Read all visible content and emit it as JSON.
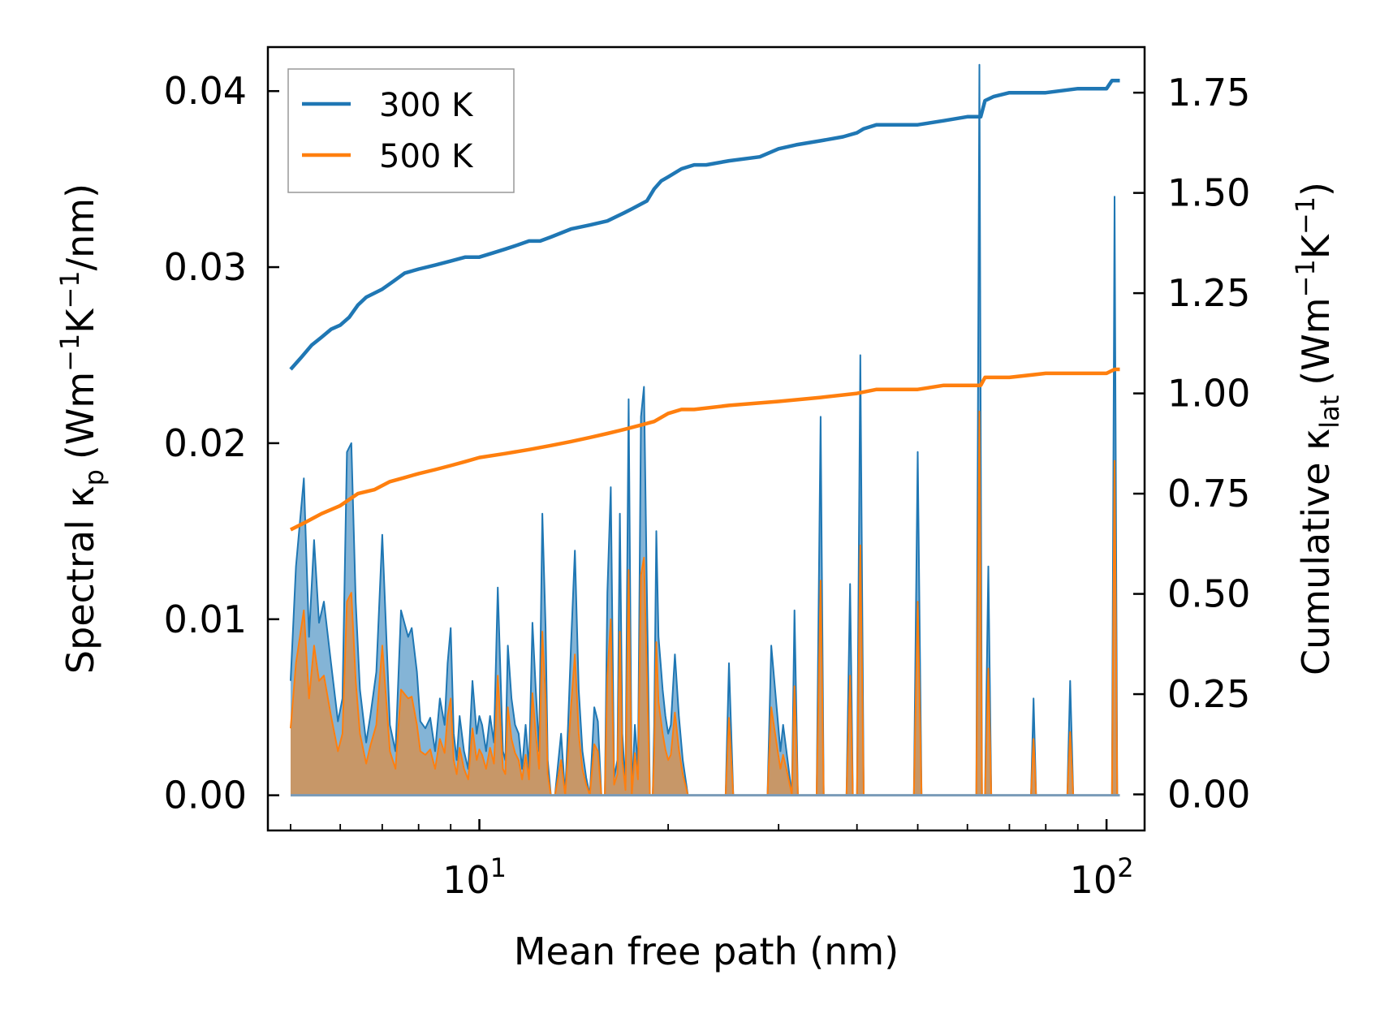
{
  "chart_data": {
    "type": "line",
    "xscale": "log",
    "xlim": [
      4.6,
      115
    ],
    "ylim_left": [
      -0.002,
      0.0425
    ],
    "ylim_right": [
      -0.09,
      1.8637
    ],
    "xlabel": "Mean free path (nm)",
    "ylabel_left": {
      "prefix": "Spectral κ",
      "sub": "p",
      "unit": "(Wm",
      "sup1": "−1",
      "mid": "K",
      "sup2": "−1",
      "suffix": "/nm)"
    },
    "ylabel_right": {
      "prefix": "Cumulative κ",
      "sub": "lat",
      "unit": "(Wm",
      "sup1": "−1",
      "mid": "K",
      "sup2": "−1",
      "suffix": ")"
    },
    "x_ticks": [
      {
        "value": 10,
        "base": "10",
        "exp": "1"
      },
      {
        "value": 100,
        "base": "10",
        "exp": "2"
      }
    ],
    "y_left_ticks": [
      {
        "value": 0.0,
        "label": "0.00"
      },
      {
        "value": 0.01,
        "label": "0.01"
      },
      {
        "value": 0.02,
        "label": "0.02"
      },
      {
        "value": 0.03,
        "label": "0.03"
      },
      {
        "value": 0.04,
        "label": "0.04"
      }
    ],
    "y_right_ticks": [
      {
        "value": 0.0,
        "label": "0.00"
      },
      {
        "value": 0.25,
        "label": "0.25"
      },
      {
        "value": 0.5,
        "label": "0.50"
      },
      {
        "value": 0.75,
        "label": "0.75"
      },
      {
        "value": 1.0,
        "label": "1.00"
      },
      {
        "value": 1.25,
        "label": "1.25"
      },
      {
        "value": 1.5,
        "label": "1.50"
      },
      {
        "value": 1.75,
        "label": "1.75"
      }
    ],
    "legend": [
      {
        "label": "300 K",
        "color": "#1f77b4"
      },
      {
        "label": "500 K",
        "color": "#ff7f0e"
      }
    ],
    "colors": {
      "s300": "#1f77b4",
      "s500": "#ff7f0e",
      "fill300": "#1f77b4",
      "fill500": "#ff7f0e"
    },
    "cumulative_300": {
      "x": [
        5.0,
        5.2,
        5.4,
        5.6,
        5.8,
        6.0,
        6.2,
        6.4,
        6.6,
        7.0,
        7.3,
        7.6,
        8.0,
        8.5,
        9.0,
        9.5,
        10.0,
        10.5,
        11.0,
        11.5,
        12.0,
        12.5,
        13.0,
        14.0,
        15.0,
        16.0,
        17.0,
        17.5,
        18.5,
        19.0,
        19.5,
        20.0,
        21.0,
        22.0,
        23.0,
        25.0,
        28.0,
        30.0,
        32.0,
        35.0,
        38.0,
        40.0,
        41.0,
        43.0,
        50.0,
        55.0,
        60.0,
        63.0,
        64.0,
        66.0,
        70.0,
        80.0,
        90.0,
        100.0,
        102.0,
        105.0
      ],
      "y": [
        1.06,
        1.09,
        1.12,
        1.14,
        1.16,
        1.17,
        1.19,
        1.22,
        1.24,
        1.26,
        1.28,
        1.3,
        1.31,
        1.32,
        1.33,
        1.34,
        1.34,
        1.35,
        1.36,
        1.37,
        1.38,
        1.38,
        1.39,
        1.41,
        1.42,
        1.43,
        1.45,
        1.46,
        1.48,
        1.51,
        1.53,
        1.54,
        1.56,
        1.57,
        1.57,
        1.58,
        1.59,
        1.61,
        1.62,
        1.63,
        1.64,
        1.65,
        1.66,
        1.67,
        1.67,
        1.68,
        1.69,
        1.69,
        1.73,
        1.74,
        1.75,
        1.75,
        1.76,
        1.76,
        1.78,
        1.78
      ]
    },
    "cumulative_500": {
      "x": [
        5.0,
        5.3,
        5.6,
        6.0,
        6.4,
        6.8,
        7.2,
        7.6,
        8.0,
        8.5,
        9.0,
        9.5,
        10.0,
        11.0,
        12.0,
        13.0,
        14.0,
        15.0,
        16.0,
        17.0,
        18.0,
        19.0,
        20.0,
        21.0,
        22.0,
        25.0,
        30.0,
        35.0,
        40.0,
        43.0,
        50.0,
        55.0,
        60.0,
        63.0,
        64.0,
        66.0,
        70.0,
        80.0,
        90.0,
        100.0,
        103.0,
        105.0
      ],
      "y": [
        0.66,
        0.68,
        0.7,
        0.72,
        0.75,
        0.76,
        0.78,
        0.79,
        0.8,
        0.81,
        0.82,
        0.83,
        0.84,
        0.85,
        0.86,
        0.87,
        0.88,
        0.89,
        0.9,
        0.91,
        0.92,
        0.93,
        0.95,
        0.96,
        0.96,
        0.97,
        0.98,
        0.99,
        1.0,
        1.01,
        1.01,
        1.02,
        1.02,
        1.02,
        1.04,
        1.04,
        1.04,
        1.05,
        1.05,
        1.05,
        1.06,
        1.06
      ]
    },
    "spectral_300": {
      "x": [
        5.0,
        5.1,
        5.25,
        5.35,
        5.45,
        5.55,
        5.65,
        5.8,
        5.95,
        6.05,
        6.15,
        6.25,
        6.35,
        6.45,
        6.6,
        6.7,
        6.85,
        7.0,
        7.2,
        7.35,
        7.5,
        7.7,
        7.8,
        7.95,
        8.05,
        8.2,
        8.35,
        8.5,
        8.65,
        8.8,
        8.9,
        9.0,
        9.1,
        9.2,
        9.3,
        9.45,
        9.6,
        9.75,
        9.9,
        10.0,
        10.1,
        10.25,
        10.4,
        10.55,
        10.7,
        10.9,
        11.0,
        11.1,
        11.25,
        11.4,
        11.55,
        11.7,
        11.85,
        12.0,
        12.15,
        12.3,
        12.45,
        12.6,
        12.75,
        12.85,
        13.0,
        13.2,
        13.35,
        13.5,
        13.7,
        13.85,
        14.0,
        14.2,
        14.4,
        14.6,
        14.8,
        15.0,
        15.25,
        15.45,
        15.65,
        15.85,
        16.0,
        16.2,
        16.4,
        16.6,
        16.75,
        16.9,
        17.1,
        17.3,
        17.5,
        17.7,
        17.9,
        18.1,
        18.3,
        18.5,
        18.7,
        18.9,
        19.0,
        19.15,
        19.3,
        19.45,
        19.6,
        19.8,
        20.0,
        20.2,
        20.5,
        20.8,
        21.1,
        21.5,
        22.0,
        22.5,
        23.0,
        24.0,
        24.7,
        25.0,
        25.4,
        25.8,
        28.0,
        28.8,
        29.2,
        29.7,
        30.2,
        30.5,
        31.0,
        31.5,
        31.8,
        32.2,
        33.5,
        34.5,
        35.0,
        35.4,
        35.8,
        38.0,
        38.5,
        39.0,
        39.4,
        40.0,
        40.5,
        41.0,
        41.4,
        41.9,
        42.5,
        48.0,
        49.3,
        50.0,
        50.7,
        52.0,
        60.0,
        61.3,
        62.0,
        62.7,
        63.3,
        64.0,
        64.8,
        65.5,
        66.3,
        67.0,
        74.0,
        75.8,
        76.5,
        77.2,
        78.0,
        85.0,
        86.6,
        87.5,
        88.5,
        89.3,
        100.0,
        102.0,
        103.0,
        104.0,
        105.0
      ],
      "y": [
        0.0065,
        0.013,
        0.018,
        0.009,
        0.0145,
        0.0098,
        0.011,
        0.0075,
        0.0042,
        0.0055,
        0.0195,
        0.02,
        0.011,
        0.006,
        0.003,
        0.0045,
        0.007,
        0.0148,
        0.004,
        0.0025,
        0.0105,
        0.009,
        0.0095,
        0.007,
        0.0042,
        0.0038,
        0.0044,
        0.0025,
        0.0055,
        0.004,
        0.0075,
        0.0095,
        0.0035,
        0.002,
        0.0045,
        0.0025,
        0.0015,
        0.0065,
        0.0035,
        0.0045,
        0.004,
        0.0025,
        0.0045,
        0.003,
        0.0118,
        0.0025,
        0.002,
        0.0085,
        0.0055,
        0.004,
        0.0035,
        0.0015,
        0.004,
        0.0015,
        0.0098,
        0.006,
        0.0025,
        0.016,
        0.0095,
        0.002,
        0.0,
        0.0,
        0.0018,
        0.0035,
        0.0,
        0.004,
        0.0085,
        0.0139,
        0.006,
        0.0025,
        0.001,
        0.0,
        0.005,
        0.0042,
        0.0,
        0.0,
        0.0115,
        0.0175,
        0.001,
        0.002,
        0.016,
        0.0035,
        0.0005,
        0.0225,
        0.0,
        0.004,
        0.0015,
        0.0215,
        0.0232,
        0.0115,
        0.0,
        0.0,
        0.004,
        0.015,
        0.009,
        0.0075,
        0.006,
        0.0045,
        0.0035,
        0.004,
        0.008,
        0.0045,
        0.002,
        0.0,
        0.0,
        0.0,
        0.0,
        0.0,
        0.0,
        0.0075,
        0.0,
        0.0,
        0.0,
        0.0,
        0.0085,
        0.0055,
        0.0025,
        0.004,
        0.002,
        0.0,
        0.0105,
        0.0,
        0.0,
        0.0,
        0.0215,
        0.0,
        0.0,
        0.0,
        0.0,
        0.012,
        0.0,
        0.0,
        0.025,
        0.0,
        0.0,
        0.0,
        0.0,
        0.0,
        0.0,
        0.0195,
        0.0,
        0.0,
        0.0,
        0.0,
        0.0,
        0.0415,
        0.0,
        0.0,
        0.013,
        0.0,
        0.0,
        0.0,
        0.0,
        0.0,
        0.0055,
        0.0,
        0.0,
        0.0,
        0.0,
        0.0065,
        0.0,
        0.0,
        0.0,
        0.0,
        0.034,
        0.0,
        0.0
      ]
    },
    "spectral_500": {
      "x": [
        5.0,
        5.1,
        5.25,
        5.35,
        5.45,
        5.55,
        5.65,
        5.8,
        5.95,
        6.05,
        6.15,
        6.25,
        6.35,
        6.45,
        6.6,
        6.7,
        6.85,
        7.0,
        7.2,
        7.35,
        7.5,
        7.7,
        7.8,
        7.95,
        8.05,
        8.2,
        8.35,
        8.5,
        8.65,
        8.8,
        8.9,
        9.0,
        9.1,
        9.2,
        9.3,
        9.45,
        9.6,
        9.75,
        9.9,
        10.0,
        10.1,
        10.25,
        10.4,
        10.55,
        10.7,
        10.9,
        11.0,
        11.1,
        11.25,
        11.4,
        11.55,
        11.7,
        11.85,
        12.0,
        12.15,
        12.3,
        12.45,
        12.6,
        12.75,
        12.85,
        13.0,
        13.2,
        13.35,
        13.5,
        13.7,
        13.85,
        14.0,
        14.2,
        14.4,
        14.6,
        14.8,
        15.0,
        15.25,
        15.45,
        15.65,
        15.85,
        16.0,
        16.2,
        16.4,
        16.6,
        16.75,
        16.9,
        17.1,
        17.3,
        17.5,
        17.7,
        17.9,
        18.1,
        18.3,
        18.5,
        18.7,
        18.9,
        19.0,
        19.15,
        19.3,
        19.45,
        19.6,
        19.8,
        20.0,
        20.2,
        20.5,
        20.8,
        21.1,
        21.5,
        22.0,
        22.5,
        23.0,
        24.0,
        24.7,
        25.0,
        25.4,
        25.8,
        28.0,
        28.8,
        29.2,
        29.7,
        30.2,
        30.5,
        31.0,
        31.5,
        31.8,
        32.2,
        33.5,
        34.5,
        35.0,
        35.4,
        35.8,
        38.0,
        38.5,
        39.0,
        39.4,
        40.0,
        40.5,
        41.0,
        41.4,
        41.9,
        42.5,
        48.0,
        49.3,
        50.0,
        50.7,
        52.0,
        60.0,
        61.3,
        62.0,
        62.7,
        63.3,
        64.0,
        64.8,
        65.5,
        66.3,
        67.0,
        74.0,
        75.8,
        76.5,
        77.2,
        78.0,
        85.0,
        86.6,
        87.5,
        88.5,
        89.3,
        100.0,
        102.0,
        103.0,
        104.0,
        105.0
      ],
      "y": [
        0.0038,
        0.0075,
        0.0105,
        0.0055,
        0.0085,
        0.0065,
        0.0068,
        0.0045,
        0.0025,
        0.0035,
        0.011,
        0.0115,
        0.0065,
        0.0035,
        0.0018,
        0.0028,
        0.004,
        0.0085,
        0.0025,
        0.0015,
        0.006,
        0.0055,
        0.0056,
        0.004,
        0.0025,
        0.0023,
        0.0026,
        0.0015,
        0.0032,
        0.0024,
        0.0045,
        0.0055,
        0.002,
        0.0012,
        0.0027,
        0.0015,
        0.0009,
        0.0038,
        0.002,
        0.0026,
        0.0023,
        0.0015,
        0.0027,
        0.0018,
        0.0068,
        0.0015,
        0.0012,
        0.005,
        0.0032,
        0.0024,
        0.002,
        0.0009,
        0.0023,
        0.0009,
        0.0058,
        0.0035,
        0.0015,
        0.0093,
        0.0055,
        0.0012,
        0.0,
        0.0,
        0.001,
        0.002,
        0.0,
        0.0024,
        0.005,
        0.008,
        0.0035,
        0.0015,
        0.0006,
        0.0,
        0.0029,
        0.0025,
        0.0,
        0.0,
        0.0068,
        0.01,
        0.0006,
        0.0012,
        0.0093,
        0.002,
        0.0003,
        0.0128,
        0.0,
        0.0024,
        0.0009,
        0.0125,
        0.0135,
        0.0068,
        0.0,
        0.0,
        0.0024,
        0.0087,
        0.0053,
        0.0044,
        0.0035,
        0.0026,
        0.002,
        0.0023,
        0.0047,
        0.0026,
        0.0012,
        0.0,
        0.0,
        0.0,
        0.0,
        0.0,
        0.0,
        0.0044,
        0.0,
        0.0,
        0.0,
        0.0,
        0.005,
        0.0032,
        0.0015,
        0.0023,
        0.0012,
        0.0,
        0.0062,
        0.0,
        0.0,
        0.0,
        0.0122,
        0.0,
        0.0,
        0.0,
        0.0,
        0.0068,
        0.0,
        0.0,
        0.0142,
        0.0,
        0.0,
        0.0,
        0.0,
        0.0,
        0.0,
        0.011,
        0.0,
        0.0,
        0.0,
        0.0,
        0.0,
        0.0218,
        0.0,
        0.0,
        0.0072,
        0.0,
        0.0,
        0.0,
        0.0,
        0.0,
        0.0032,
        0.0,
        0.0,
        0.0,
        0.0,
        0.0036,
        0.0,
        0.0,
        0.0,
        0.0,
        0.019,
        0.0,
        0.0
      ]
    }
  }
}
